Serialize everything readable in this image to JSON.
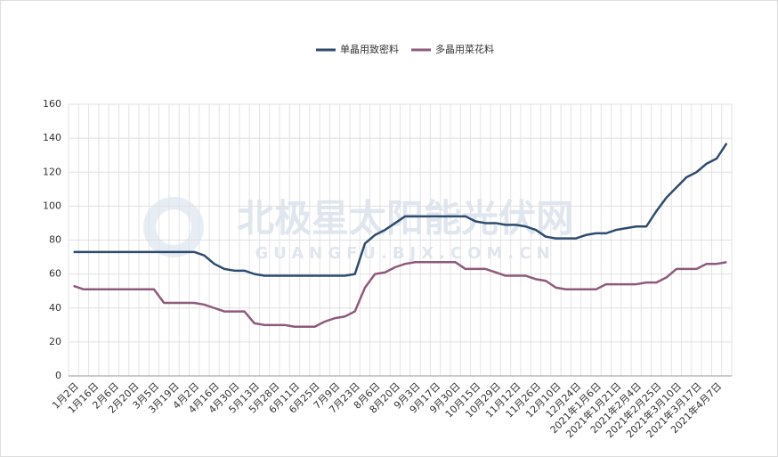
{
  "chart_data": {
    "type": "line",
    "watermark": "北极星太阳能光伏网",
    "watermark_sub": "GUANGFU.BJX.COM.CN",
    "categories": [
      "1月2日",
      null,
      "1月16日",
      null,
      "2月6日",
      null,
      "2月20日",
      null,
      "3月5日",
      null,
      "3月19日",
      null,
      "4月2日",
      null,
      "4月16日",
      null,
      "4月30日",
      null,
      "5月13日",
      null,
      "5月28日",
      null,
      "6月11日",
      null,
      "6月25日",
      null,
      "7月9日",
      null,
      "7月23日",
      null,
      "8月6日",
      null,
      "8月20日",
      null,
      "9月3日",
      null,
      "9月17日",
      null,
      "9月30日",
      null,
      "10月15日",
      null,
      "10月29日",
      null,
      "11月12日",
      null,
      "11月26日",
      null,
      "12月10日",
      null,
      "12月24日",
      null,
      "2021年1月6日",
      null,
      "2021年1月21日",
      null,
      "2021年2月4日",
      null,
      "2021年2月25日",
      null,
      "2021年3月10日",
      null,
      "2021年3月17日",
      null,
      "2021年4月7日",
      null
    ],
    "series": [
      {
        "name": "单晶用致密料",
        "color": "#2f4b6e",
        "values": [
          73,
          73,
          73,
          73,
          73,
          73,
          73,
          73,
          73,
          73,
          73,
          73,
          73,
          71,
          66,
          63,
          62,
          62,
          60,
          59,
          59,
          59,
          59,
          59,
          59,
          59,
          59,
          59,
          60,
          78,
          83,
          86,
          90,
          94,
          94,
          94,
          94,
          94,
          94,
          94,
          91,
          90,
          90,
          89,
          89,
          88,
          86,
          82,
          81,
          81,
          81,
          83,
          84,
          84,
          86,
          87,
          88,
          88,
          97,
          105,
          111,
          117,
          120,
          125,
          128,
          137
        ]
      },
      {
        "name": "多晶用菜花料",
        "color": "#8e5a7b",
        "values": [
          53,
          51,
          51,
          51,
          51,
          51,
          51,
          51,
          51,
          43,
          43,
          43,
          43,
          42,
          40,
          38,
          38,
          38,
          31,
          30,
          30,
          30,
          29,
          29,
          29,
          32,
          34,
          35,
          38,
          52,
          60,
          61,
          64,
          66,
          67,
          67,
          67,
          67,
          67,
          63,
          63,
          63,
          61,
          59,
          59,
          59,
          57,
          56,
          52,
          51,
          51,
          51,
          51,
          54,
          54,
          54,
          54,
          55,
          55,
          58,
          63,
          63,
          63,
          66,
          66,
          67
        ]
      }
    ],
    "ylim": [
      0,
      160
    ],
    "yticks": [
      0,
      20,
      40,
      60,
      80,
      100,
      120,
      140,
      160
    ],
    "grid": true,
    "legend": "top"
  }
}
